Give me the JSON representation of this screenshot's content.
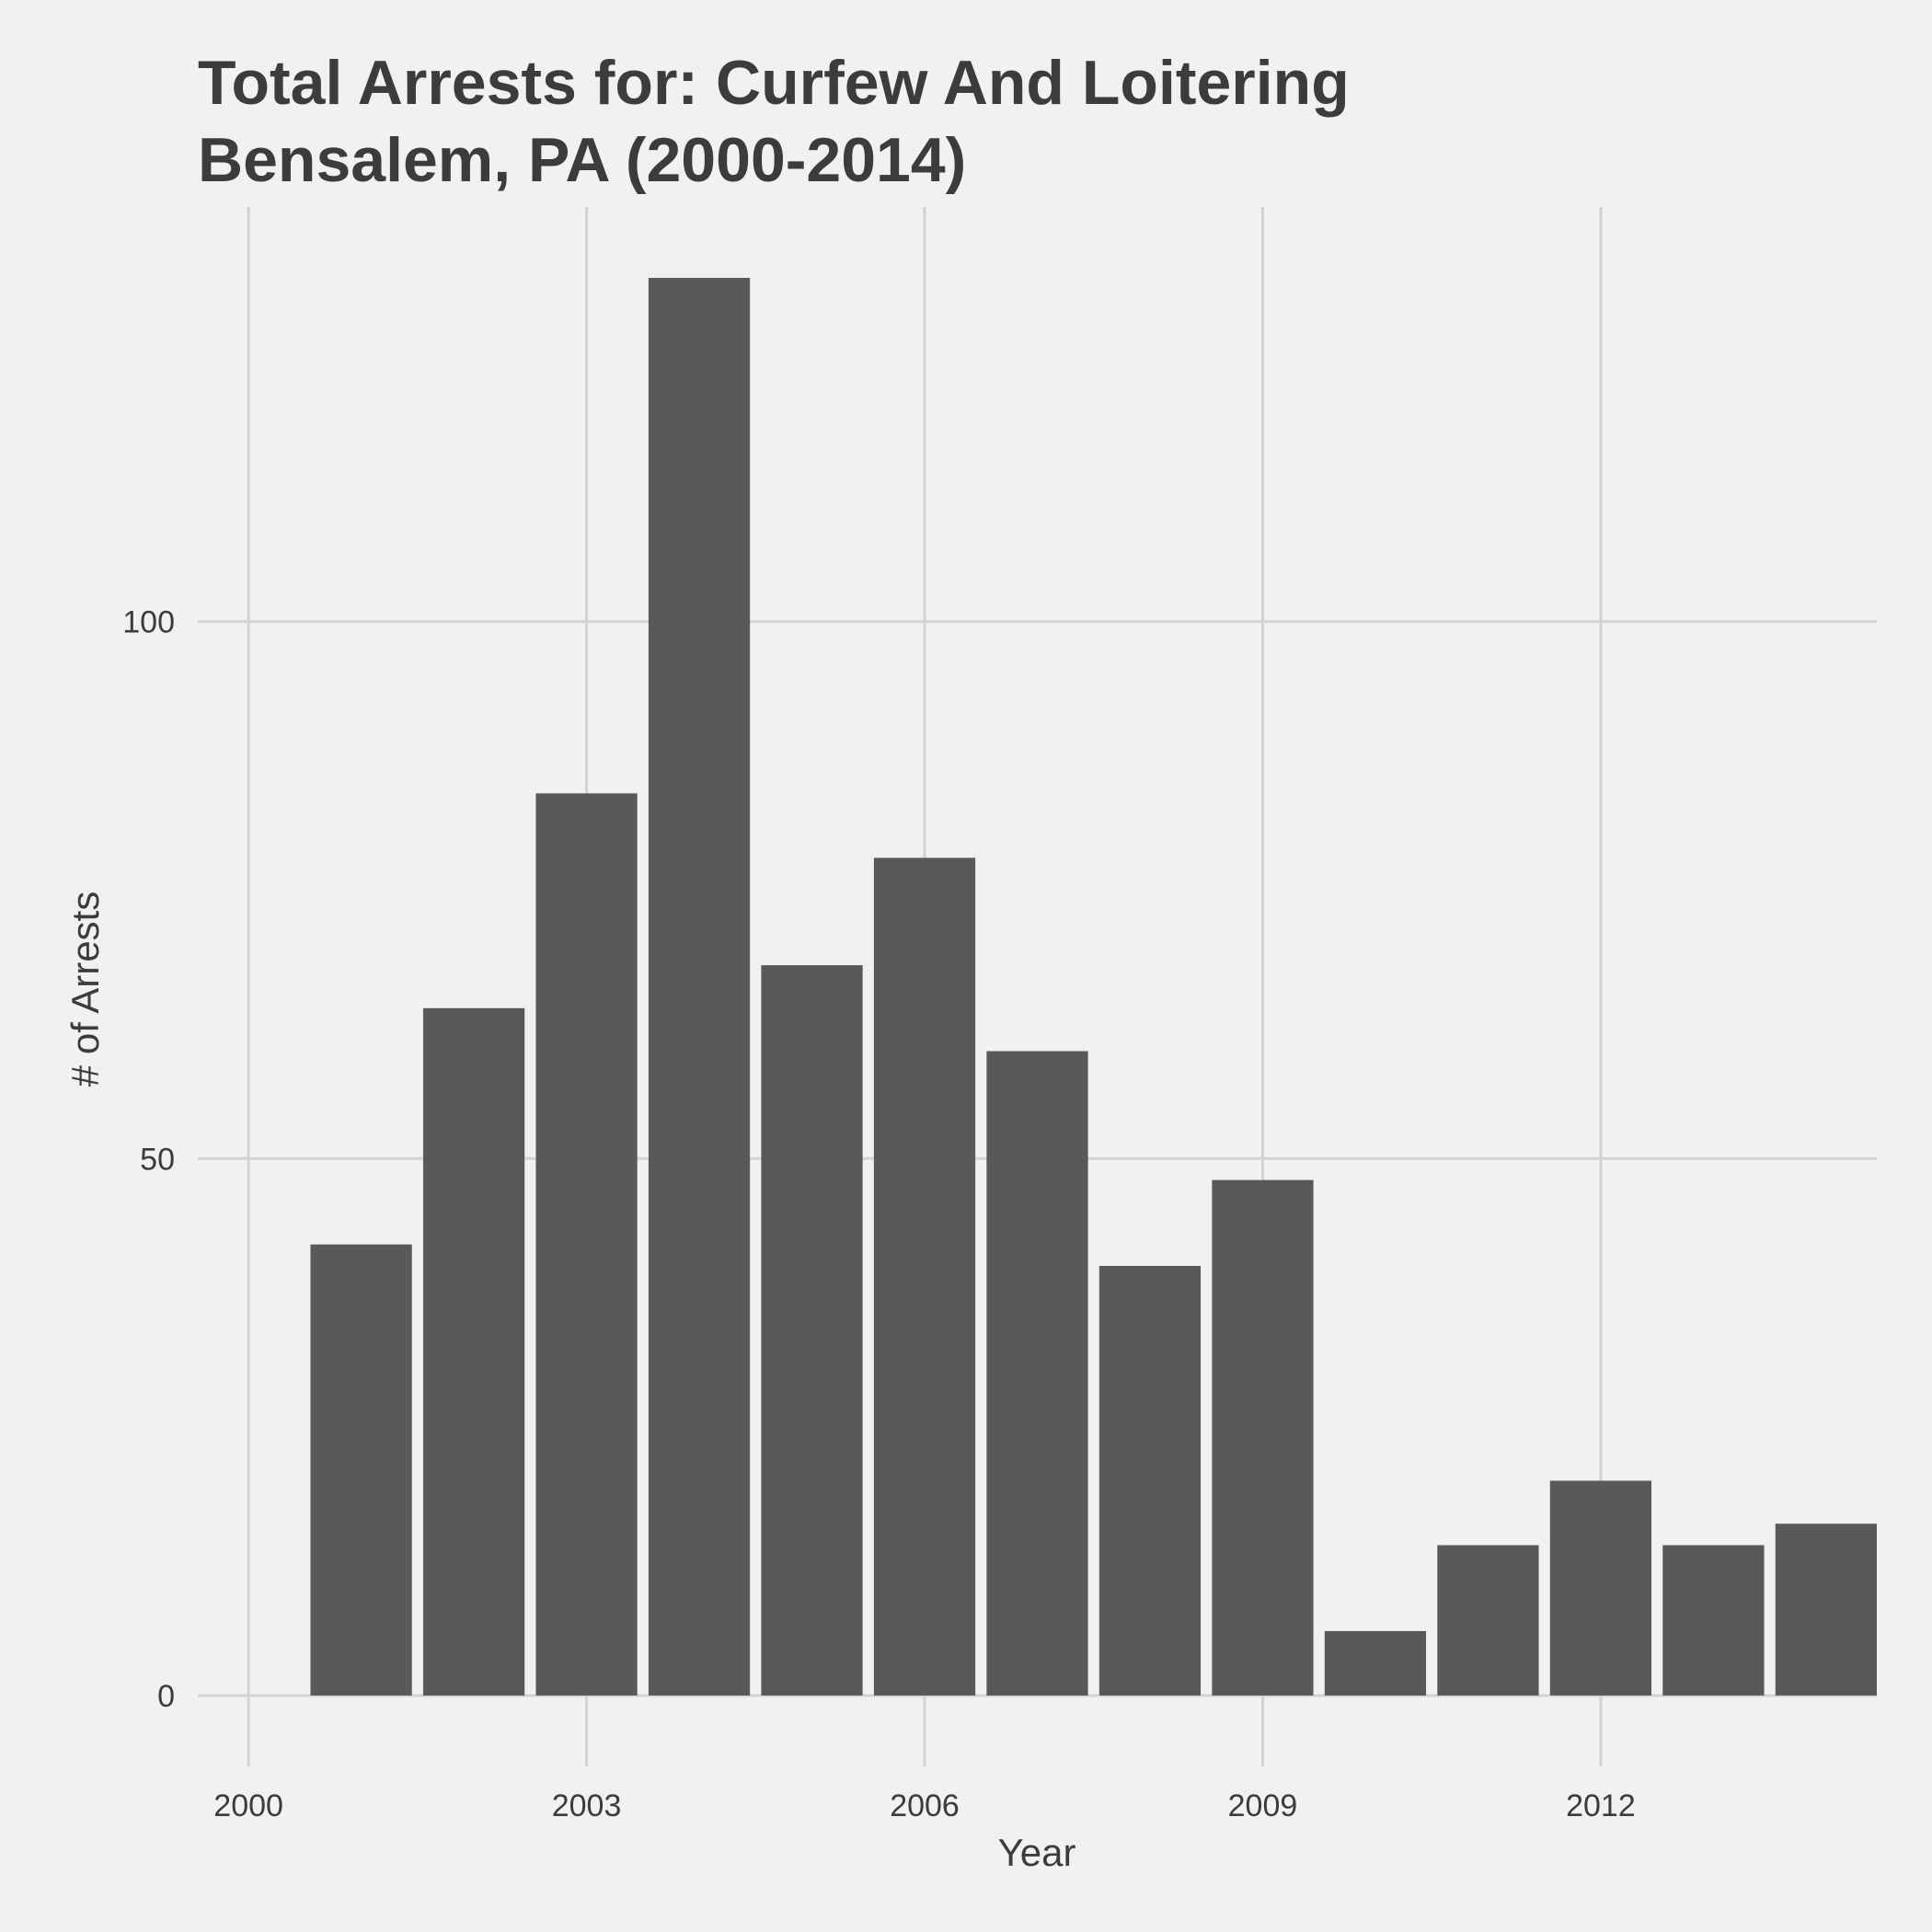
{
  "chart_data": {
    "type": "bar",
    "title": "Total Arrests for: Curfew And Loitering",
    "subtitle": "Bensalem, PA (2000-2014)",
    "xlabel": "Year",
    "ylabel": "# of Arrests",
    "x": [
      2001,
      2002,
      2003,
      2004,
      2005,
      2006,
      2007,
      2008,
      2009,
      2010,
      2011,
      2012,
      2013,
      2014
    ],
    "values": [
      42,
      64,
      84,
      132,
      68,
      78,
      60,
      40,
      48,
      6,
      14,
      20,
      14,
      16
    ],
    "xticks": [
      2000,
      2003,
      2006,
      2009,
      2012
    ],
    "xtick_labels": [
      "2000",
      "2003",
      "2006",
      "2009",
      "2012"
    ],
    "yticks": [
      0,
      50,
      100
    ],
    "ytick_labels": [
      "0",
      "50",
      "100"
    ],
    "xlim": [
      1999.55,
      2014.45
    ],
    "ylim": [
      -6.6,
      138.6
    ],
    "grid": true,
    "bar_color": "#595959",
    "background_color": "#f1f1f1",
    "grid_color": "#d2d2d2"
  }
}
